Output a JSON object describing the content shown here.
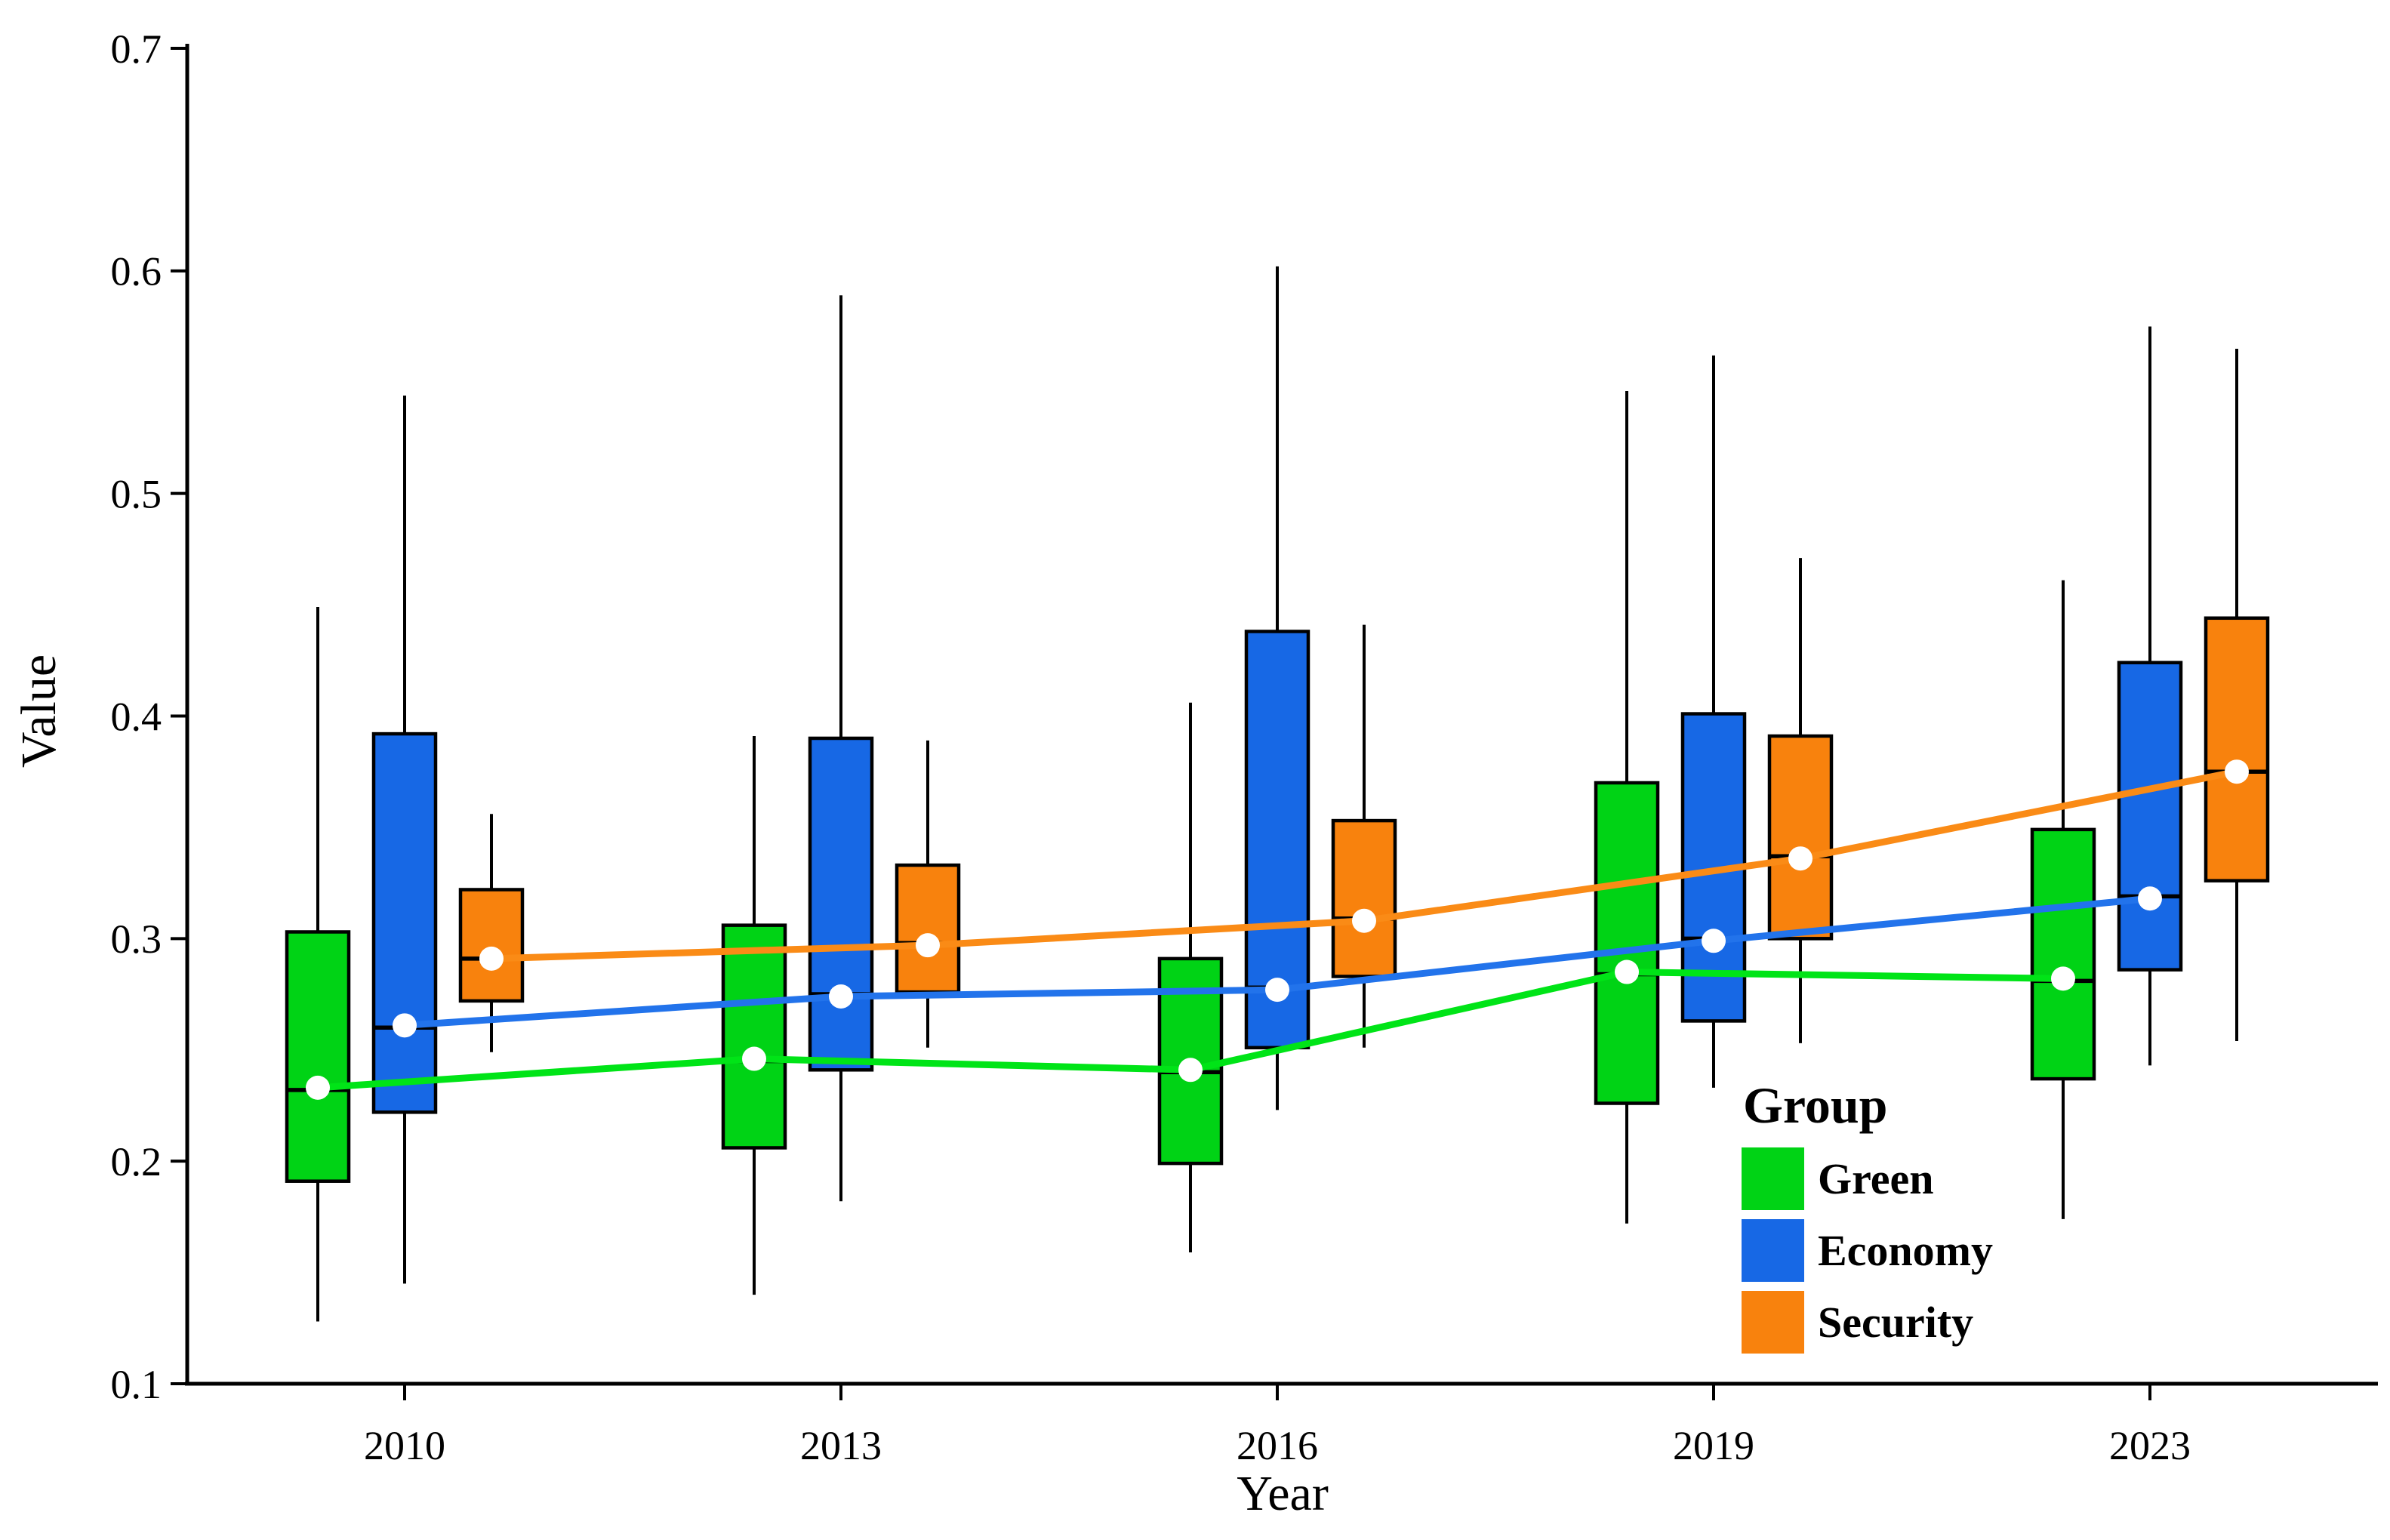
{
  "figure": {
    "background": "#FFFFFF",
    "axis_color": "#000000"
  },
  "chart_data": {
    "type": "grouped_boxplot_with_mean_lines",
    "title": "",
    "xlabel": "Year",
    "ylabel": "Value",
    "ylim": [
      0.1,
      0.7
    ],
    "yticks": [
      0.1,
      0.2,
      0.3,
      0.4,
      0.5,
      0.6,
      0.7
    ],
    "ytick_labels": [
      "0.1",
      "0.2",
      "0.3",
      "0.4",
      "0.5",
      "0.6",
      "0.7"
    ],
    "categories": [
      "2010",
      "2013",
      "2016",
      "2019",
      "2023"
    ],
    "grid": false,
    "legend": {
      "title": "Group",
      "position": "inside bottom-right",
      "entries": [
        "Green",
        "Economy",
        "Security"
      ]
    },
    "mean_marker": {
      "shape": "circle",
      "fill": "#FFFFFF"
    },
    "groups": [
      {
        "name": "Green",
        "color": "#00D315",
        "line_color": "#00E417",
        "boxes": [
          {
            "year": "2010",
            "whisker_low": 0.128,
            "q1": 0.191,
            "median": 0.232,
            "q3": 0.303,
            "whisker_high": 0.449,
            "mean": 0.233
          },
          {
            "year": "2013",
            "whisker_low": 0.14,
            "q1": 0.206,
            "median": 0.245,
            "q3": 0.306,
            "whisker_high": 0.391,
            "mean": 0.246
          },
          {
            "year": "2016",
            "whisker_low": 0.159,
            "q1": 0.199,
            "median": 0.24,
            "q3": 0.291,
            "whisker_high": 0.406,
            "mean": 0.241
          },
          {
            "year": "2019",
            "whisker_low": 0.172,
            "q1": 0.226,
            "median": 0.284,
            "q3": 0.37,
            "whisker_high": 0.546,
            "mean": 0.285
          },
          {
            "year": "2023",
            "whisker_low": 0.174,
            "q1": 0.237,
            "median": 0.281,
            "q3": 0.349,
            "whisker_high": 0.461,
            "mean": 0.282
          }
        ]
      },
      {
        "name": "Economy",
        "color": "#1768E5",
        "line_color": "#2273EB",
        "boxes": [
          {
            "year": "2010",
            "whisker_low": 0.145,
            "q1": 0.222,
            "median": 0.26,
            "q3": 0.392,
            "whisker_high": 0.544,
            "mean": 0.261
          },
          {
            "year": "2013",
            "whisker_low": 0.182,
            "q1": 0.241,
            "median": 0.275,
            "q3": 0.39,
            "whisker_high": 0.589,
            "mean": 0.274
          },
          {
            "year": "2016",
            "whisker_low": 0.223,
            "q1": 0.251,
            "median": 0.278,
            "q3": 0.438,
            "whisker_high": 0.602,
            "mean": 0.277
          },
          {
            "year": "2019",
            "whisker_low": 0.233,
            "q1": 0.263,
            "median": 0.3,
            "q3": 0.401,
            "whisker_high": 0.562,
            "mean": 0.299
          },
          {
            "year": "2023",
            "whisker_low": 0.243,
            "q1": 0.286,
            "median": 0.319,
            "q3": 0.424,
            "whisker_high": 0.575,
            "mean": 0.318
          }
        ]
      },
      {
        "name": "Security",
        "color": "#F8820D",
        "line_color": "#FA8B16",
        "boxes": [
          {
            "year": "2010",
            "whisker_low": 0.249,
            "q1": 0.272,
            "median": 0.291,
            "q3": 0.322,
            "whisker_high": 0.356,
            "mean": 0.291
          },
          {
            "year": "2013",
            "whisker_low": 0.251,
            "q1": 0.276,
            "median": 0.298,
            "q3": 0.333,
            "whisker_high": 0.389,
            "mean": 0.297
          },
          {
            "year": "2016",
            "whisker_low": 0.251,
            "q1": 0.283,
            "median": 0.309,
            "q3": 0.353,
            "whisker_high": 0.441,
            "mean": 0.308
          },
          {
            "year": "2019",
            "whisker_low": 0.253,
            "q1": 0.3,
            "median": 0.337,
            "q3": 0.391,
            "whisker_high": 0.471,
            "mean": 0.336
          },
          {
            "year": "2023",
            "whisker_low": 0.254,
            "q1": 0.326,
            "median": 0.375,
            "q3": 0.444,
            "whisker_high": 0.565,
            "mean": 0.375
          }
        ]
      }
    ]
  }
}
